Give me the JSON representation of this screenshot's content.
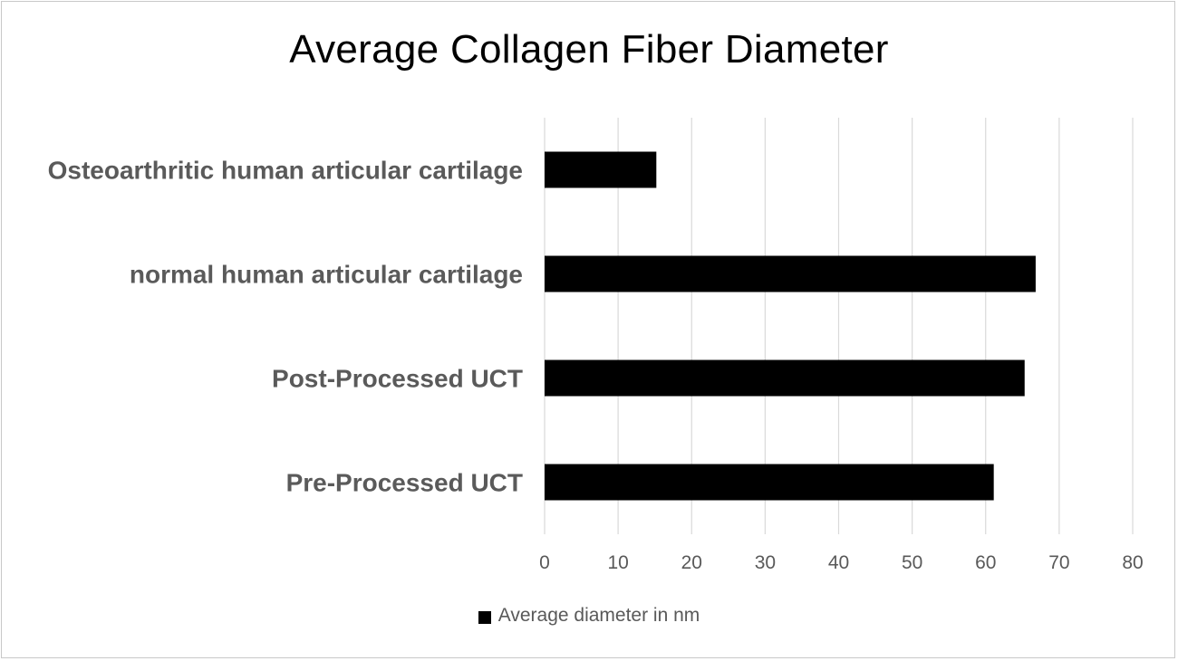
{
  "chart_data": {
    "type": "bar",
    "orientation": "horizontal",
    "title": "Average Collagen Fiber Diameter",
    "categories": [
      "Osteoarthritic human articular cartilage",
      "normal human articular cartilage",
      "Post-Processed UCT",
      "Pre-Processed UCT"
    ],
    "series": [
      {
        "name": "Average diameter in nm",
        "values": [
          15.2,
          66.8,
          65.3,
          61.1
        ],
        "color": "#000000"
      }
    ],
    "xlim": [
      0,
      80
    ],
    "xticks": [
      "0",
      "10",
      "20",
      "30",
      "40",
      "50",
      "60",
      "70",
      "80"
    ],
    "grid": "vertical",
    "legend_position": "bottom"
  }
}
